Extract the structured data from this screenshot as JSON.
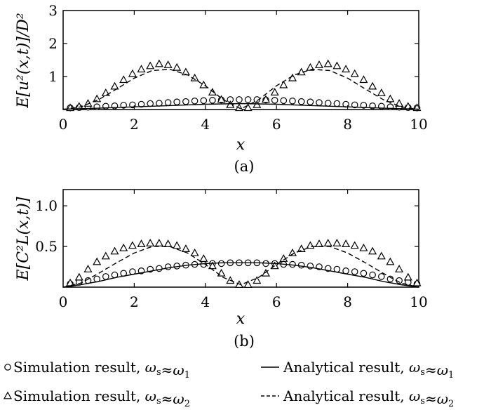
{
  "chart_data": [
    {
      "type": "line",
      "caption": "(a)",
      "xlabel": "x",
      "ylabel": "E[u²(x,t)]/D²",
      "xlim": [
        0,
        10
      ],
      "ylim": [
        0,
        3
      ],
      "xticks": [
        "0",
        "2",
        "4",
        "6",
        "8",
        "10"
      ],
      "yticks": [
        "1",
        "2",
        "3"
      ],
      "grid": false,
      "series": [
        {
          "name": "Simulation result, ωs≈ω1",
          "style": "circle-markers",
          "x": [
            0.2,
            0.45,
            0.7,
            0.95,
            1.2,
            1.45,
            1.7,
            1.95,
            2.2,
            2.45,
            2.7,
            2.95,
            3.2,
            3.45,
            3.7,
            3.95,
            4.2,
            4.45,
            4.7,
            4.95,
            5.2,
            5.45,
            5.7,
            5.95,
            6.2,
            6.45,
            6.7,
            6.95,
            7.2,
            7.45,
            7.7,
            7.95,
            8.2,
            8.45,
            8.7,
            8.95,
            9.2,
            9.45,
            9.7,
            9.95
          ],
          "y": [
            0.05,
            0.06,
            0.07,
            0.08,
            0.1,
            0.11,
            0.13,
            0.14,
            0.16,
            0.18,
            0.19,
            0.21,
            0.23,
            0.24,
            0.26,
            0.27,
            0.28,
            0.29,
            0.3,
            0.3,
            0.3,
            0.3,
            0.29,
            0.28,
            0.27,
            0.26,
            0.24,
            0.23,
            0.21,
            0.19,
            0.18,
            0.16,
            0.14,
            0.13,
            0.11,
            0.1,
            0.08,
            0.07,
            0.06,
            0.05
          ]
        },
        {
          "name": "Simulation result, ωs≈ω2",
          "style": "triangle-markers",
          "x": [
            0.2,
            0.45,
            0.7,
            0.95,
            1.2,
            1.45,
            1.7,
            1.95,
            2.2,
            2.45,
            2.7,
            2.95,
            3.2,
            3.45,
            3.7,
            3.95,
            4.2,
            4.45,
            4.7,
            4.95,
            5.2,
            5.45,
            5.7,
            5.95,
            6.2,
            6.45,
            6.7,
            6.95,
            7.2,
            7.45,
            7.7,
            7.95,
            8.2,
            8.45,
            8.7,
            8.95,
            9.2,
            9.45,
            9.7,
            9.95
          ],
          "y": [
            0.05,
            0.09,
            0.18,
            0.32,
            0.5,
            0.7,
            0.9,
            1.08,
            1.22,
            1.32,
            1.38,
            1.35,
            1.27,
            1.13,
            0.95,
            0.74,
            0.52,
            0.3,
            0.14,
            0.05,
            0.05,
            0.14,
            0.3,
            0.52,
            0.74,
            0.95,
            1.13,
            1.27,
            1.35,
            1.38,
            1.32,
            1.22,
            1.08,
            0.9,
            0.7,
            0.5,
            0.32,
            0.18,
            0.09,
            0.05
          ]
        },
        {
          "name": "Analytical result, ωs≈ω1",
          "style": "solid",
          "x": [
            0,
            1,
            2,
            3,
            4,
            5,
            6,
            7,
            8,
            9,
            10
          ],
          "y": [
            0.01,
            0.04,
            0.08,
            0.12,
            0.16,
            0.18,
            0.16,
            0.12,
            0.08,
            0.04,
            0.01
          ]
        },
        {
          "name": "Analytical result, ωs≈ω2",
          "style": "dashed",
          "x": [
            0,
            0.5,
            1,
            1.5,
            2,
            2.5,
            3,
            3.5,
            4,
            4.5,
            5,
            5.5,
            6,
            6.5,
            7,
            7.5,
            8,
            8.5,
            9,
            9.5,
            10
          ],
          "y": [
            0.0,
            0.08,
            0.3,
            0.62,
            0.95,
            1.18,
            1.22,
            1.05,
            0.72,
            0.3,
            0.02,
            0.3,
            0.72,
            1.05,
            1.22,
            1.18,
            0.95,
            0.62,
            0.3,
            0.08,
            0.0
          ]
        }
      ]
    },
    {
      "type": "line",
      "caption": "(b)",
      "xlabel": "x",
      "ylabel": "E[C²L(x,t)]",
      "xlim": [
        0,
        10
      ],
      "ylim": [
        0,
        1.2
      ],
      "xticks": [
        "0",
        "2",
        "4",
        "6",
        "8",
        "10"
      ],
      "yticks": [
        "0.5",
        "1.0"
      ],
      "grid": false,
      "series": [
        {
          "name": "Simulation result, ωs≈ω1",
          "style": "circle-markers",
          "x": [
            0.2,
            0.45,
            0.7,
            0.95,
            1.2,
            1.45,
            1.7,
            1.95,
            2.2,
            2.45,
            2.7,
            2.95,
            3.2,
            3.45,
            3.7,
            3.95,
            4.2,
            4.45,
            4.7,
            4.95,
            5.2,
            5.45,
            5.7,
            5.95,
            6.2,
            6.45,
            6.7,
            6.95,
            7.2,
            7.45,
            7.7,
            7.95,
            8.2,
            8.45,
            8.7,
            8.95,
            9.2,
            9.45,
            9.7,
            9.95
          ],
          "y": [
            0.04,
            0.06,
            0.08,
            0.1,
            0.13,
            0.15,
            0.17,
            0.19,
            0.2,
            0.22,
            0.23,
            0.25,
            0.26,
            0.27,
            0.28,
            0.28,
            0.29,
            0.29,
            0.3,
            0.3,
            0.3,
            0.3,
            0.29,
            0.29,
            0.28,
            0.28,
            0.27,
            0.26,
            0.25,
            0.23,
            0.22,
            0.2,
            0.19,
            0.17,
            0.15,
            0.13,
            0.1,
            0.08,
            0.06,
            0.04
          ]
        },
        {
          "name": "Simulation result, ωs≈ω2",
          "style": "triangle-markers",
          "x": [
            0.2,
            0.45,
            0.7,
            0.95,
            1.2,
            1.45,
            1.7,
            1.95,
            2.2,
            2.45,
            2.7,
            2.95,
            3.2,
            3.45,
            3.7,
            3.95,
            4.2,
            4.45,
            4.7,
            4.95,
            5.2,
            5.45,
            5.7,
            5.95,
            6.2,
            6.45,
            6.7,
            6.95,
            7.2,
            7.45,
            7.7,
            7.95,
            8.2,
            8.45,
            8.7,
            8.95,
            9.2,
            9.45,
            9.7,
            9.95
          ],
          "y": [
            0.05,
            0.12,
            0.22,
            0.31,
            0.38,
            0.44,
            0.48,
            0.51,
            0.53,
            0.54,
            0.54,
            0.53,
            0.51,
            0.47,
            0.42,
            0.35,
            0.26,
            0.17,
            0.08,
            0.03,
            0.03,
            0.08,
            0.17,
            0.26,
            0.35,
            0.42,
            0.47,
            0.51,
            0.53,
            0.54,
            0.54,
            0.53,
            0.51,
            0.48,
            0.44,
            0.38,
            0.31,
            0.22,
            0.12,
            0.05
          ]
        },
        {
          "name": "Analytical result, ωs≈ω1",
          "style": "solid",
          "x": [
            0,
            0.5,
            1,
            1.5,
            2,
            2.5,
            3,
            3.5,
            4,
            4.5,
            5,
            5.5,
            6,
            6.5,
            7,
            7.5,
            8,
            8.5,
            9,
            9.5,
            10
          ],
          "y": [
            0.0,
            0.03,
            0.07,
            0.12,
            0.16,
            0.2,
            0.24,
            0.27,
            0.29,
            0.3,
            0.3,
            0.3,
            0.29,
            0.27,
            0.24,
            0.2,
            0.16,
            0.12,
            0.07,
            0.03,
            0.0
          ]
        },
        {
          "name": "Analytical result, ωs≈ω2",
          "style": "dashed",
          "x": [
            0,
            0.5,
            1,
            1.5,
            2,
            2.5,
            3,
            3.5,
            4,
            4.5,
            5,
            5.5,
            6,
            6.5,
            7,
            7.5,
            8,
            8.5,
            9,
            9.5,
            10
          ],
          "y": [
            0.0,
            0.05,
            0.17,
            0.3,
            0.42,
            0.5,
            0.5,
            0.42,
            0.28,
            0.12,
            0.03,
            0.12,
            0.28,
            0.42,
            0.5,
            0.5,
            0.42,
            0.3,
            0.17,
            0.05,
            0.0
          ]
        }
      ]
    }
  ],
  "legend": {
    "entries": [
      {
        "symbol": "circle",
        "label": "Simulation result,",
        "omega": "ω",
        "sub_s": "s",
        "approx": "≈",
        "omega2": "ω",
        "sub_n": "1"
      },
      {
        "symbol": "solid",
        "label": "Analytical result,",
        "omega": "ω",
        "sub_s": "s",
        "approx": "≈",
        "omega2": "ω",
        "sub_n": "1"
      },
      {
        "symbol": "triangle",
        "label": "Simulation result,",
        "omega": "ω",
        "sub_s": "s",
        "approx": "≈",
        "omega2": "ω",
        "sub_n": "2"
      },
      {
        "symbol": "dashed",
        "label": "Analytical result,",
        "omega": "ω",
        "sub_s": "s",
        "approx": "≈",
        "omega2": "ω",
        "sub_n": "2"
      }
    ]
  }
}
